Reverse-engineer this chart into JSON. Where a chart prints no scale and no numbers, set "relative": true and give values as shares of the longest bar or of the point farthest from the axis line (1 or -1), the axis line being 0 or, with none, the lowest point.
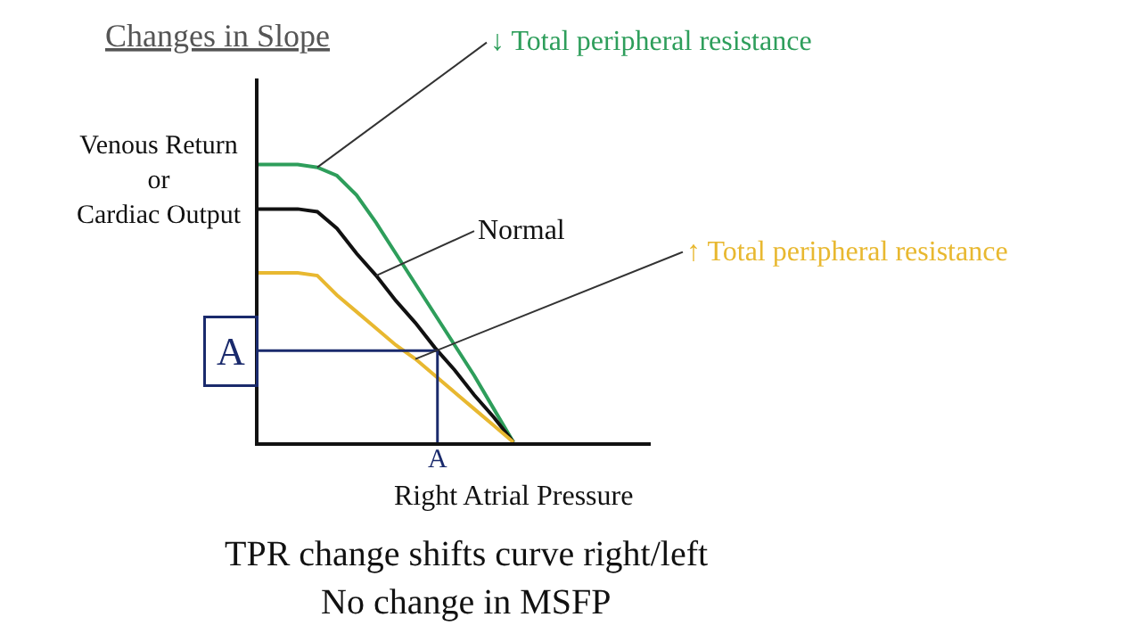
{
  "chart_data": {
    "type": "line",
    "relative": true,
    "subtitle": "Changes in Slope",
    "xlabel": "Right Atrial Pressure",
    "ylabel": "Venous Return\nor\nCardiac Output",
    "categories": [
      null,
      null,
      null,
      null,
      null,
      null,
      null,
      null,
      null,
      null,
      null,
      null,
      null,
      null,
      null,
      null,
      null,
      null,
      null,
      null,
      null
    ],
    "series": [
      {
        "name": "↓ Total peripheral resistance",
        "color": "#2e9e5b",
        "values": [
          1,
          1,
          1,
          0.99,
          0.96,
          0.89,
          0.79,
          0.68,
          0.57,
          0.46,
          0.35,
          0.24,
          0.12,
          0,
          null,
          null,
          null,
          null,
          null,
          null,
          null
        ]
      },
      {
        "name": "Normal",
        "color": "#111111",
        "values": [
          0.84,
          0.84,
          0.84,
          0.83,
          0.77,
          0.68,
          0.6,
          0.51,
          0.43,
          0.34,
          0.26,
          0.17,
          0.09,
          0,
          null,
          null,
          null,
          null,
          null,
          null,
          null
        ]
      },
      {
        "name": "↑ Total peripheral resistance",
        "color": "#e8b830",
        "values": [
          0.61,
          0.61,
          0.61,
          0.6,
          0.53,
          0.47,
          0.41,
          0.35,
          0.3,
          0.24,
          0.18,
          0.12,
          0.06,
          0,
          null,
          null,
          null,
          null,
          null,
          null,
          null
        ]
      }
    ],
    "ref_lines": [
      {
        "axis": "y",
        "value": 0.33,
        "label": "A",
        "color": "#1a2a6c"
      }
    ],
    "annotations": [
      "A",
      "TPR change shifts curve right/left",
      "No change in MSFP"
    ],
    "legend": false,
    "marker": "none",
    "line_style": "solid"
  }
}
